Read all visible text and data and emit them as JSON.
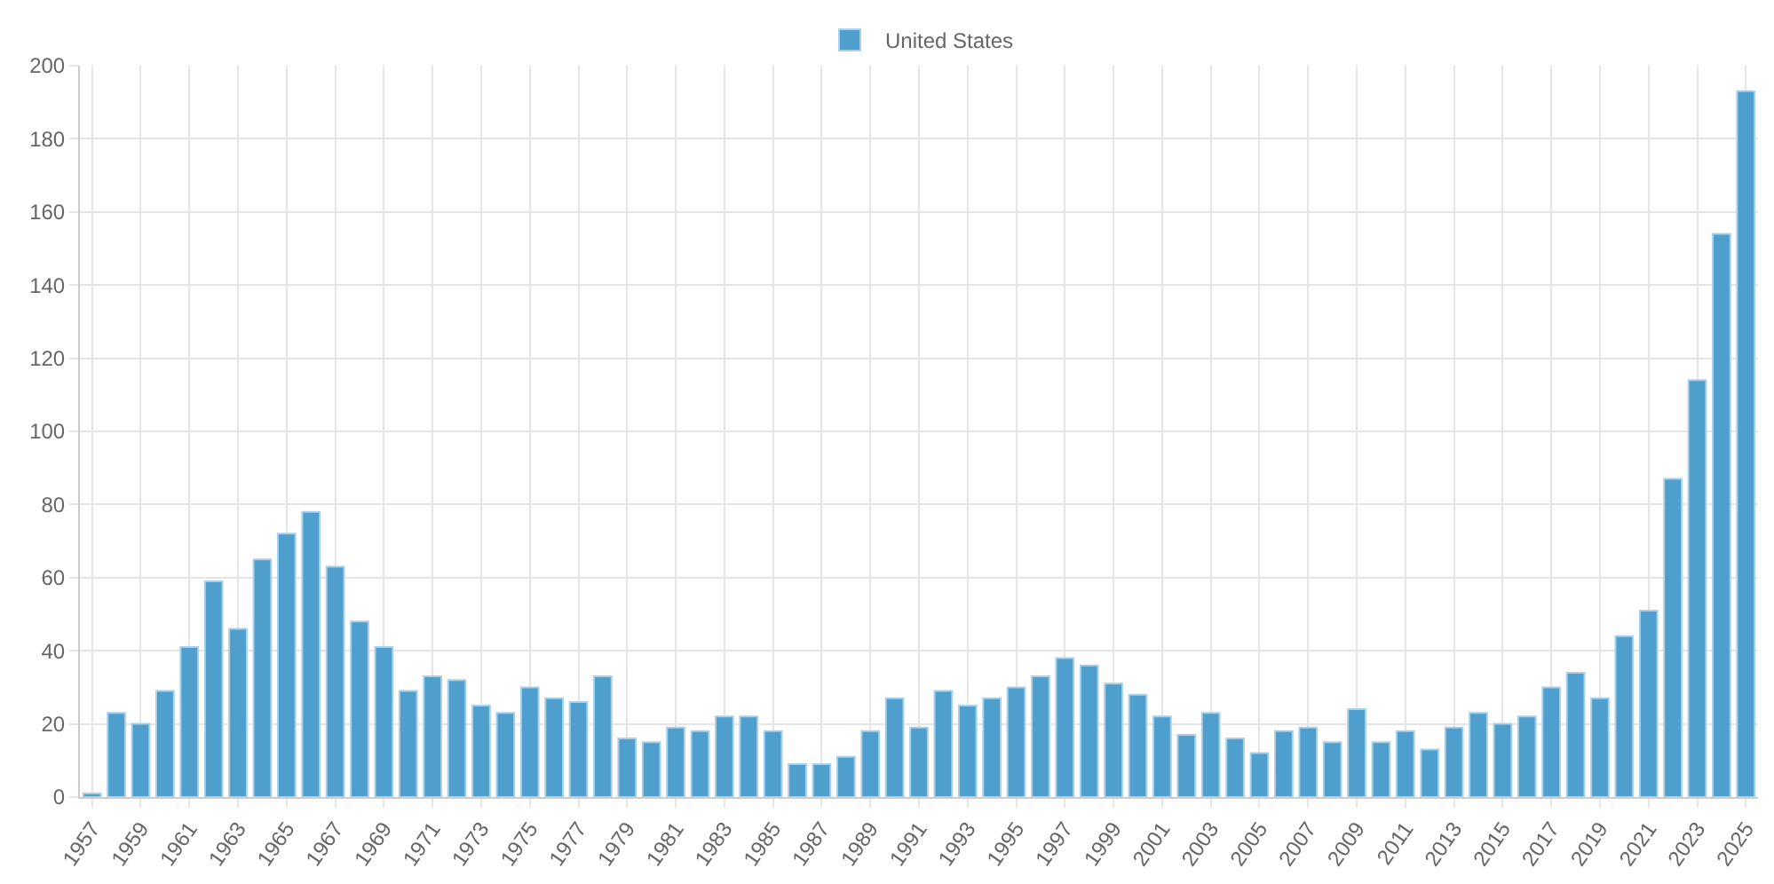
{
  "chart_data": {
    "type": "bar",
    "categories": [
      "1957",
      null,
      "1959",
      null,
      "1961",
      null,
      "1963",
      null,
      "1965",
      null,
      "1967",
      null,
      "1969",
      null,
      "1971",
      null,
      "1973",
      null,
      "1975",
      null,
      "1977",
      null,
      "1979",
      null,
      "1981",
      null,
      "1983",
      null,
      "1985",
      null,
      "1987",
      null,
      "1989",
      null,
      "1991",
      null,
      "1993",
      null,
      "1995",
      null,
      "1997",
      null,
      "1999",
      null,
      "2001",
      null,
      "2003",
      null,
      "2005",
      null,
      "2007",
      null,
      "2009",
      null,
      "2011",
      null,
      "2013",
      null,
      "2015",
      null,
      "2017",
      null,
      "2019",
      null,
      "2021",
      null,
      "2023",
      null,
      "2025"
    ],
    "series": [
      {
        "name": "United States",
        "color": "#4e9fcd",
        "values": [
          1,
          23,
          20,
          29,
          41,
          59,
          46,
          65,
          72,
          78,
          63,
          48,
          41,
          29,
          33,
          32,
          25,
          23,
          30,
          27,
          26,
          33,
          16,
          15,
          19,
          18,
          22,
          22,
          18,
          9,
          9,
          11,
          18,
          27,
          19,
          29,
          25,
          27,
          30,
          33,
          38,
          36,
          31,
          28,
          22,
          17,
          23,
          16,
          12,
          18,
          19,
          15,
          24,
          15,
          18,
          13,
          19,
          23,
          20,
          22,
          30,
          34,
          27,
          44,
          51,
          87,
          114,
          154,
          193
        ]
      }
    ],
    "ylim": [
      0,
      200
    ],
    "yticks": [
      0,
      20,
      40,
      60,
      80,
      100,
      120,
      140,
      160,
      180,
      200
    ],
    "grid": true,
    "legend": "top"
  }
}
